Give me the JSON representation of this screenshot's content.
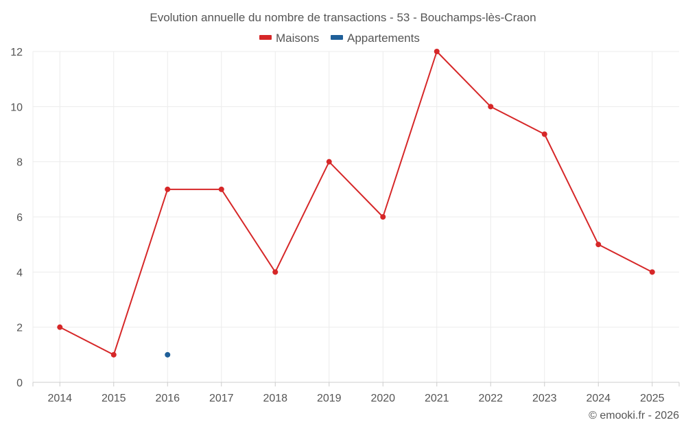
{
  "chart_data": {
    "type": "line",
    "title": "Evolution annuelle du nombre de transactions - 53 - Bouchamps-lès-Craon",
    "categories": [
      "2014",
      "2015",
      "2016",
      "2017",
      "2018",
      "2019",
      "2020",
      "2021",
      "2022",
      "2023",
      "2024",
      "2025"
    ],
    "series": [
      {
        "name": "Maisons",
        "color": "#d62728",
        "values": [
          2,
          1,
          7,
          7,
          4,
          8,
          6,
          12,
          10,
          9,
          5,
          4
        ]
      },
      {
        "name": "Appartements",
        "color": "#1f5f99",
        "values": [
          null,
          null,
          1,
          null,
          null,
          null,
          null,
          null,
          null,
          null,
          null,
          null
        ]
      }
    ],
    "ylim": [
      0,
      12
    ],
    "yticks": [
      0,
      2,
      4,
      6,
      8,
      10,
      12
    ],
    "grid": true,
    "legend_position": "top-center"
  },
  "credit": "© emooki.fr - 2026"
}
